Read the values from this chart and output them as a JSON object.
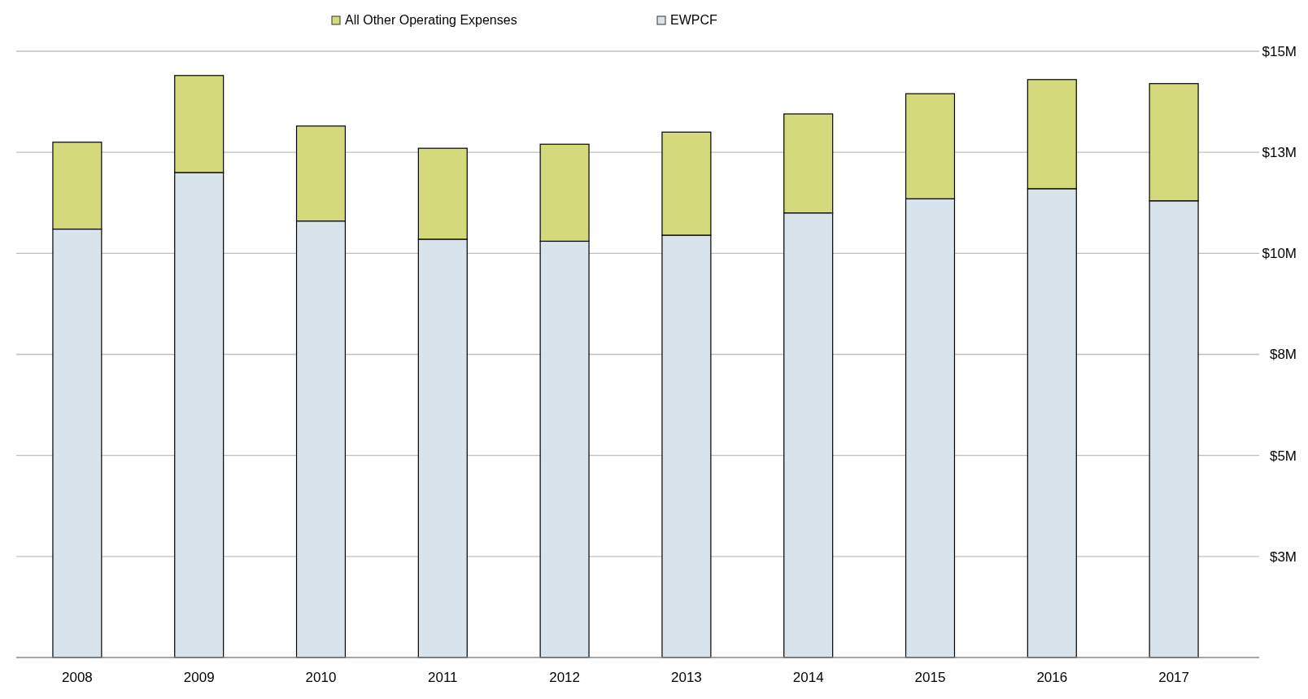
{
  "chart_data": {
    "type": "bar",
    "stacked": true,
    "categories": [
      "2008",
      "2009",
      "2010",
      "2011",
      "2012",
      "2013",
      "2014",
      "2015",
      "2016",
      "2017"
    ],
    "series": [
      {
        "name": "EWPCF",
        "color": "#d9e3ec",
        "values": [
          10.6,
          12.0,
          10.8,
          10.35,
          10.3,
          10.45,
          11.0,
          11.35,
          11.6,
          11.3
        ]
      },
      {
        "name": "All Other Operating Expenses",
        "color": "#d4da7c",
        "values": [
          2.15,
          2.4,
          2.35,
          2.25,
          2.4,
          2.55,
          2.45,
          2.6,
          2.7,
          2.9
        ]
      }
    ],
    "ylim": [
      0,
      15
    ],
    "yticks": [
      {
        "value": 2.5,
        "label": "$3M"
      },
      {
        "value": 5,
        "label": "$5M"
      },
      {
        "value": 7.5,
        "label": "$8M"
      },
      {
        "value": 10,
        "label": "$10M"
      },
      {
        "value": 12.5,
        "label": "$13M"
      },
      {
        "value": 15,
        "label": "$15M"
      }
    ],
    "grid": "y",
    "legend": "top"
  }
}
